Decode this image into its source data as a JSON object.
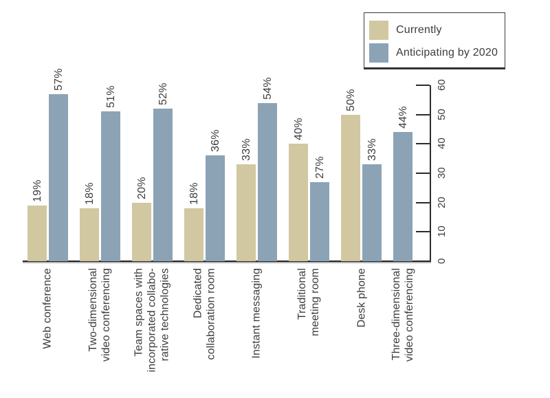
{
  "legend": {
    "items": [
      {
        "label": "Currently",
        "color": "#d1c8a1"
      },
      {
        "label": "Anticipating by 2020",
        "color": "#8ca3b5"
      }
    ]
  },
  "chart_data": {
    "type": "bar",
    "categories": [
      "Web conference",
      "Two-dimensional\nvideo conferencing",
      "Team spaces with\nincorporated collabo-\nrative technologies",
      "Dedicated\ncollaboration room",
      "Instant messaging",
      "Traditional\nmeeting room",
      "Desk phone",
      "Three-dimensional\nvideo conferencing"
    ],
    "series": [
      {
        "name": "Currently",
        "color": "#d1c8a1",
        "values": [
          19,
          18,
          20,
          18,
          33,
          40,
          50,
          null
        ]
      },
      {
        "name": "Anticipating by 2020",
        "color": "#8ca3b5",
        "values": [
          57,
          51,
          52,
          36,
          54,
          27,
          33,
          44
        ]
      }
    ],
    "value_labels_suffix": "%",
    "value_labels": [
      "19%",
      "57%",
      "18%",
      "51%",
      "20%",
      "52%",
      "18%",
      "36%",
      "33%",
      "54%",
      "40%",
      "27%",
      "50%",
      "33%",
      "44%"
    ],
    "ylim": [
      0,
      60
    ],
    "yticks": [
      0,
      10,
      20,
      30,
      40,
      50,
      60
    ],
    "grid": false,
    "axis_side": "right",
    "legend_position": "top-right",
    "orientation": "vertical-bars-rotated-labels",
    "colors": {
      "text": "#3c3c3c",
      "axis": "#2b2b2b"
    }
  }
}
